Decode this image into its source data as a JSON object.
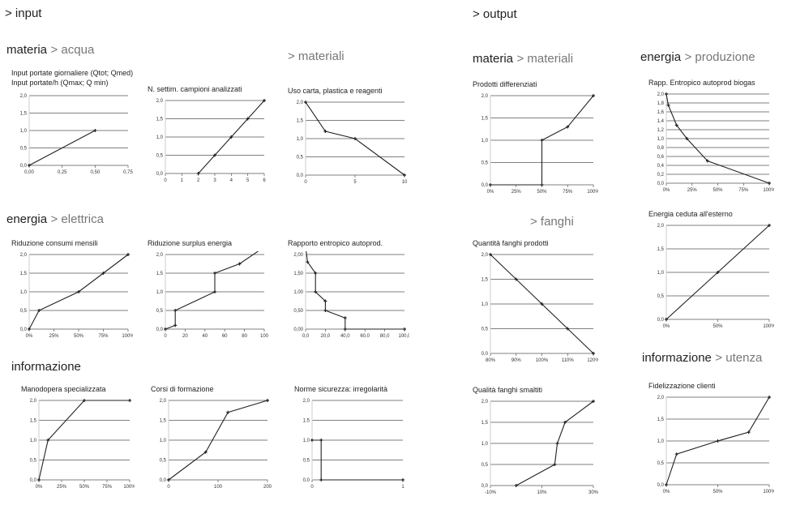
{
  "headers": {
    "input": "> input",
    "output": "> output"
  },
  "sections": [
    {
      "main": "materia",
      "sub": "> acqua"
    },
    {
      "main": "",
      "sub": "> materiali"
    },
    {
      "main": "energia",
      "sub": "> elettrica"
    },
    {
      "main": "informazione",
      "sub": ""
    },
    {
      "main": "materia",
      "sub": "> materiali"
    },
    {
      "main": "energia",
      "sub": "> produzione"
    },
    {
      "main": "",
      "sub": "> fanghi"
    },
    {
      "main": "informazione",
      "sub": "> utenza"
    }
  ],
  "chart_data": [
    {
      "type": "line",
      "title": [
        "Input portate giornaliere (Qtot; Qmed)",
        "Input portate/h (Qmax; Q min)"
      ],
      "xticks": [
        "0,00",
        "0,25",
        "0,50",
        "0,75"
      ],
      "xlim": [
        0,
        0.75
      ],
      "yticks": [
        "0,0",
        "0,5",
        "1,0",
        "1,5",
        "2,0"
      ],
      "ylim": [
        0,
        2
      ],
      "x": [
        0,
        0.5
      ],
      "y": [
        0,
        1
      ]
    },
    {
      "type": "line",
      "title": [
        "N. settim. campioni analizzati"
      ],
      "xticks": [
        "0",
        "1",
        "2",
        "3",
        "4",
        "5",
        "6"
      ],
      "xlim": [
        0,
        6
      ],
      "yticks": [
        "0,0",
        "0,5",
        "1,0",
        "1,5",
        "2,0"
      ],
      "ylim": [
        0,
        2
      ],
      "x": [
        2,
        3,
        4,
        5,
        6
      ],
      "y": [
        0,
        0.5,
        1,
        1.5,
        2
      ]
    },
    {
      "type": "line",
      "title": [
        "Uso carta, plastica e reagenti"
      ],
      "xticks": [
        "0",
        "5",
        "10"
      ],
      "xlim": [
        0,
        10
      ],
      "yticks": [
        "0,0",
        "0,5",
        "1,0",
        "1,5",
        "2,0"
      ],
      "ylim": [
        0,
        2
      ],
      "x": [
        0,
        2,
        5,
        10
      ],
      "y": [
        2,
        1.2,
        1,
        0
      ]
    },
    {
      "type": "line",
      "title": [
        "Riduzione consumi mensili"
      ],
      "xticks": [
        "0%",
        "25%",
        "50%",
        "75%",
        "100%"
      ],
      "xlim": [
        0,
        100
      ],
      "yticks": [
        "0,0",
        "0,5",
        "1,0",
        "1,5",
        "2,0"
      ],
      "ylim": [
        0,
        2
      ],
      "x": [
        0,
        10,
        50,
        75,
        100
      ],
      "y": [
        0,
        0.5,
        1,
        1.5,
        2
      ]
    },
    {
      "type": "line",
      "title": [
        "Riduzione surplus energia"
      ],
      "xticks": [
        "0",
        "20",
        "40",
        "60",
        "80",
        "100"
      ],
      "xlim": [
        0,
        100
      ],
      "yticks": [
        "0,0",
        "0,5",
        "1,0",
        "1,5",
        "2,0"
      ],
      "ylim": [
        0,
        2
      ],
      "x": [
        0,
        10,
        10,
        50,
        50,
        75,
        100
      ],
      "y": [
        0,
        0.1,
        0.5,
        1,
        1.5,
        1.75,
        2.2
      ]
    },
    {
      "type": "line",
      "title": [
        "Rapporto entropico autoprod."
      ],
      "xticks": [
        "0,0",
        "20,0",
        "40,0",
        "60,0",
        "80,0",
        "100,0"
      ],
      "xlim": [
        0,
        100
      ],
      "yticks": [
        "0,00",
        "0,50",
        "1,00",
        "1,50",
        "2,00"
      ],
      "ylim": [
        0,
        2
      ],
      "x": [
        0,
        2,
        10,
        10,
        20,
        20,
        40,
        40,
        100
      ],
      "y": [
        2.2,
        1.8,
        1.5,
        1,
        0.75,
        0.5,
        0.3,
        0,
        0
      ]
    },
    {
      "type": "line",
      "title": [
        "Manodopera specializzata"
      ],
      "xticks": [
        "0%",
        "25%",
        "50%",
        "75%",
        "100%"
      ],
      "xlim": [
        0,
        100
      ],
      "yticks": [
        "0,0",
        "0,5",
        "1,0",
        "1,5",
        "2,0"
      ],
      "ylim": [
        0,
        2
      ],
      "x": [
        0,
        10,
        50,
        100
      ],
      "y": [
        0,
        1,
        2,
        2
      ]
    },
    {
      "type": "line",
      "title": [
        "Corsi di formazione"
      ],
      "xticks": [
        "0",
        "100",
        "200"
      ],
      "xlim": [
        0,
        200
      ],
      "yticks": [
        "0,0",
        "0,5",
        "1,0",
        "1,5",
        "2,0"
      ],
      "ylim": [
        0,
        2
      ],
      "x": [
        0,
        75,
        120,
        200
      ],
      "y": [
        0,
        0.7,
        1.7,
        2
      ]
    },
    {
      "type": "line",
      "title": [
        "Norme sicurezza: irregolarità"
      ],
      "xticks": [
        "0",
        "1"
      ],
      "xlim": [
        0,
        1
      ],
      "yticks": [
        "0,0",
        "0,5",
        "1,0",
        "1,5",
        "2,0"
      ],
      "ylim": [
        0,
        2
      ],
      "x": [
        0,
        0.1,
        0.1,
        1
      ],
      "y": [
        1,
        1,
        0,
        0
      ]
    },
    {
      "type": "line",
      "title": [
        "Prodotti differenziati"
      ],
      "xticks": [
        "0%",
        "25%",
        "50%",
        "75%",
        "100%"
      ],
      "xlim": [
        0,
        100
      ],
      "yticks": [
        "0,0",
        "0,5",
        "1,0",
        "1,5",
        "2,0"
      ],
      "ylim": [
        0,
        2
      ],
      "x": [
        0,
        50,
        50,
        75,
        100
      ],
      "y": [
        0,
        0,
        1,
        1.3,
        2
      ]
    },
    {
      "type": "line",
      "title": [
        "Rapp. Entropico autoprod biogas"
      ],
      "xticks": [
        "0%",
        "25%",
        "50%",
        "75%",
        "100%"
      ],
      "xlim": [
        0,
        100
      ],
      "yticks": [
        "0,0",
        "0,2",
        "0,4",
        "0,6",
        "0,8",
        "1,0",
        "1,2",
        "1,4",
        "1,6",
        "1,8",
        "2,0"
      ],
      "ylim": [
        0,
        2
      ],
      "x": [
        0,
        2,
        10,
        20,
        40,
        100
      ],
      "y": [
        2,
        1.75,
        1.3,
        1,
        0.5,
        0
      ]
    },
    {
      "type": "line",
      "title": [
        "Quantità fanghi prodotti"
      ],
      "xticks": [
        "80%",
        "90%",
        "100%",
        "110%",
        "120%"
      ],
      "xlim": [
        80,
        120
      ],
      "yticks": [
        "0,0",
        "0,5",
        "1,0",
        "1,5",
        "2,0"
      ],
      "ylim": [
        0,
        2
      ],
      "x": [
        80,
        90,
        100,
        110,
        120
      ],
      "y": [
        2,
        1.5,
        1,
        0.5,
        0
      ]
    },
    {
      "type": "line",
      "title": [
        "Energia ceduta all'esterno"
      ],
      "xticks": [
        "0%",
        "50%",
        "100%"
      ],
      "xlim": [
        0,
        100
      ],
      "yticks": [
        "0,0",
        "0,5",
        "1,0",
        "1,5",
        "2,0"
      ],
      "ylim": [
        0,
        2
      ],
      "x": [
        0,
        50,
        100
      ],
      "y": [
        0,
        1,
        2
      ]
    },
    {
      "type": "line",
      "title": [
        "Qualità fanghi smaltiti"
      ],
      "xticks": [
        "-10%",
        "10%",
        "30%"
      ],
      "xlim": [
        -10,
        30
      ],
      "yticks": [
        "0,0",
        "0,5",
        "1,0",
        "1,5",
        "2,0"
      ],
      "ylim": [
        0,
        2
      ],
      "x": [
        0,
        15,
        16,
        19,
        30
      ],
      "y": [
        0,
        0.5,
        1,
        1.5,
        2
      ]
    },
    {
      "type": "line",
      "title": [
        "Fidelizzazione clienti"
      ],
      "xticks": [
        "0%",
        "50%",
        "100%"
      ],
      "xlim": [
        0,
        100
      ],
      "yticks": [
        "0,0",
        "0,5",
        "1,0",
        "1,5",
        "2,0"
      ],
      "ylim": [
        0,
        2
      ],
      "x": [
        0,
        10,
        50,
        80,
        100
      ],
      "y": [
        0,
        0.7,
        1,
        1.2,
        2
      ]
    }
  ]
}
